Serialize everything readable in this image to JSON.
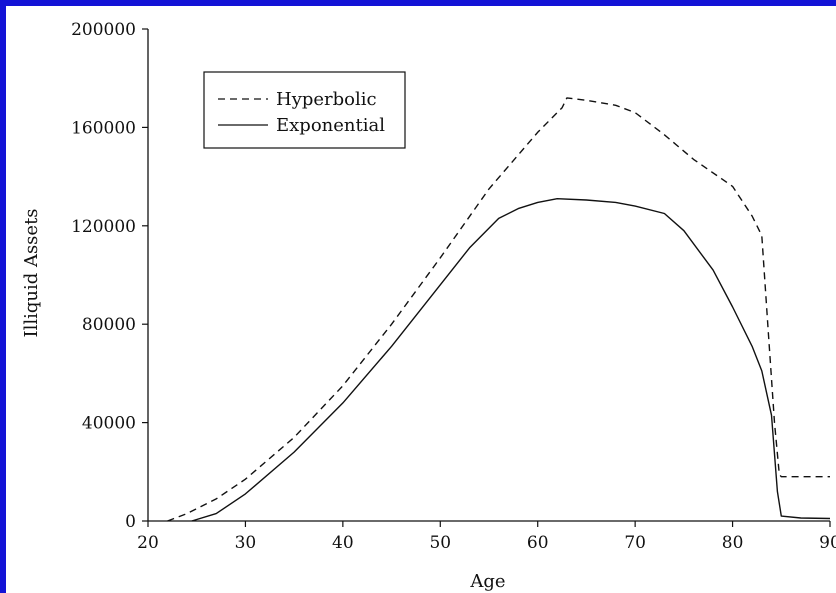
{
  "chart_data": {
    "type": "line",
    "title": "",
    "xlabel": "Age",
    "ylabel": "Illiquid Assets",
    "xlim": [
      20,
      90
    ],
    "ylim": [
      0,
      200000
    ],
    "x_ticks": [
      "20",
      "30",
      "40",
      "50",
      "60",
      "70",
      "80",
      "90"
    ],
    "y_ticks": [
      "0",
      "40000",
      "80000",
      "120000",
      "160000",
      "200000"
    ],
    "grid": false,
    "legend_position": "top-left",
    "series": [
      {
        "name": "Hyperbolic",
        "style": "dashed",
        "color": "#111111",
        "points": [
          [
            22,
            0
          ],
          [
            24,
            3000
          ],
          [
            27,
            9000
          ],
          [
            30,
            17000
          ],
          [
            35,
            34000
          ],
          [
            40,
            55000
          ],
          [
            45,
            80000
          ],
          [
            50,
            107000
          ],
          [
            55,
            135000
          ],
          [
            60,
            158000
          ],
          [
            62.5,
            168000
          ],
          [
            63,
            172000
          ],
          [
            65,
            171000
          ],
          [
            68,
            169000
          ],
          [
            70,
            166000
          ],
          [
            73,
            157000
          ],
          [
            76,
            147000
          ],
          [
            80,
            136000
          ],
          [
            82,
            124000
          ],
          [
            83,
            116000
          ],
          [
            83.7,
            75000
          ],
          [
            84.3,
            40000
          ],
          [
            84.8,
            19000
          ],
          [
            85,
            18000
          ],
          [
            88,
            18000
          ],
          [
            90,
            18000
          ]
        ]
      },
      {
        "name": "Exponential",
        "style": "solid",
        "color": "#111111",
        "points": [
          [
            24.5,
            0
          ],
          [
            27,
            3000
          ],
          [
            30,
            11000
          ],
          [
            35,
            28000
          ],
          [
            40,
            48000
          ],
          [
            45,
            71000
          ],
          [
            50,
            96000
          ],
          [
            53,
            111000
          ],
          [
            56,
            123000
          ],
          [
            58,
            127000
          ],
          [
            60,
            129500
          ],
          [
            62,
            131000
          ],
          [
            65,
            130500
          ],
          [
            68,
            129500
          ],
          [
            70,
            128000
          ],
          [
            73,
            125000
          ],
          [
            75,
            118000
          ],
          [
            78,
            102000
          ],
          [
            80,
            87000
          ],
          [
            82,
            71000
          ],
          [
            83,
            61000
          ],
          [
            84,
            43000
          ],
          [
            84.6,
            12000
          ],
          [
            85,
            2000
          ],
          [
            87,
            1200
          ],
          [
            90,
            1000
          ]
        ]
      }
    ]
  }
}
